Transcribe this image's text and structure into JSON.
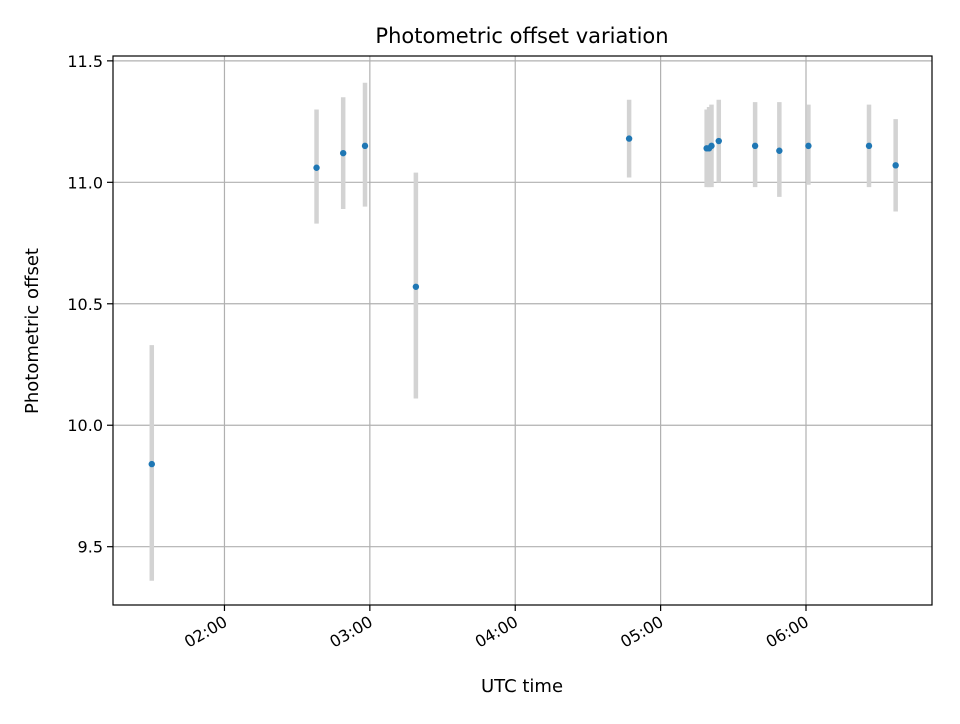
{
  "chart_data": {
    "type": "scatter",
    "title": "Photometric offset variation",
    "xlabel": "UTC time",
    "ylabel": "Photometric offset",
    "x_unit": "hours (UTC)",
    "xlim": [
      "01:14",
      "06:52"
    ],
    "ylim": [
      9.26,
      11.52
    ],
    "x_ticks": [
      "02:00",
      "03:00",
      "04:00",
      "05:00",
      "06:00"
    ],
    "y_ticks": [
      "9.5",
      "10.0",
      "10.5",
      "11.0",
      "11.5"
    ],
    "grid": true,
    "colors": {
      "point": "#1f77b4",
      "errorbar": "#d3d3d3",
      "grid": "#b0b0b0"
    },
    "points": [
      {
        "x": "01:30",
        "y": 9.84,
        "lo": 9.36,
        "hi": 10.33
      },
      {
        "x": "02:38",
        "y": 11.06,
        "lo": 10.83,
        "hi": 11.3
      },
      {
        "x": "02:49",
        "y": 11.12,
        "lo": 10.89,
        "hi": 11.35
      },
      {
        "x": "02:58",
        "y": 11.15,
        "lo": 10.9,
        "hi": 11.41
      },
      {
        "x": "03:19",
        "y": 10.57,
        "lo": 10.11,
        "hi": 11.04
      },
      {
        "x": "04:47",
        "y": 11.18,
        "lo": 11.02,
        "hi": 11.34
      },
      {
        "x": "05:19",
        "y": 11.14,
        "lo": 10.98,
        "hi": 11.3
      },
      {
        "x": "05:20",
        "y": 11.14,
        "lo": 10.98,
        "hi": 11.31
      },
      {
        "x": "05:21",
        "y": 11.15,
        "lo": 10.98,
        "hi": 11.32
      },
      {
        "x": "05:24",
        "y": 11.17,
        "lo": 11.0,
        "hi": 11.34
      },
      {
        "x": "05:39",
        "y": 11.15,
        "lo": 10.98,
        "hi": 11.33
      },
      {
        "x": "05:49",
        "y": 11.13,
        "lo": 10.94,
        "hi": 11.33
      },
      {
        "x": "06:01",
        "y": 11.15,
        "lo": 10.99,
        "hi": 11.32
      },
      {
        "x": "06:26",
        "y": 11.15,
        "lo": 10.98,
        "hi": 11.32
      },
      {
        "x": "06:37",
        "y": 11.07,
        "lo": 10.88,
        "hi": 11.26
      }
    ]
  }
}
